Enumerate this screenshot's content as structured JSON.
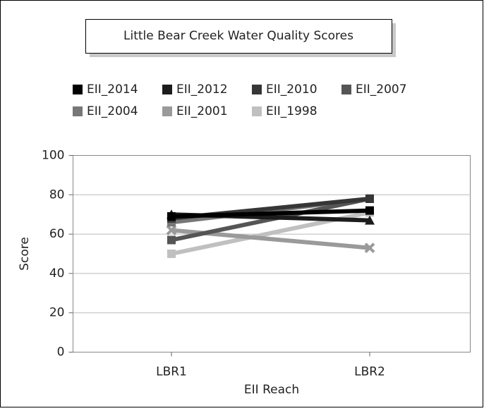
{
  "chart_data": {
    "type": "line",
    "title": "Little Bear Creek Water Quality Scores",
    "x_label": "EII Reach",
    "y_label": "Score",
    "categories": [
      "LBR1",
      "LBR2"
    ],
    "series": [
      {
        "name": "EII_2014",
        "color": "#000000",
        "values": [
          69,
          72
        ]
      },
      {
        "name": "EII_2012",
        "color": "#1c1c1c",
        "values": [
          70,
          67
        ]
      },
      {
        "name": "EII_2010",
        "color": "#363636",
        "values": [
          68,
          78
        ]
      },
      {
        "name": "EII_2007",
        "color": "#555555",
        "values": [
          57,
          78
        ]
      },
      {
        "name": "EII_2004",
        "color": "#777777",
        "values": [
          66,
          78
        ]
      },
      {
        "name": "EII_2001",
        "color": "#9a9a9a",
        "values": [
          62,
          53
        ]
      },
      {
        "name": "EII_1998",
        "color": "#c0c0c0",
        "values": [
          50,
          71
        ]
      }
    ],
    "ylim": [
      0,
      100
    ],
    "yticks": [
      0,
      20,
      40,
      60,
      80,
      100
    ],
    "grid": true
  }
}
